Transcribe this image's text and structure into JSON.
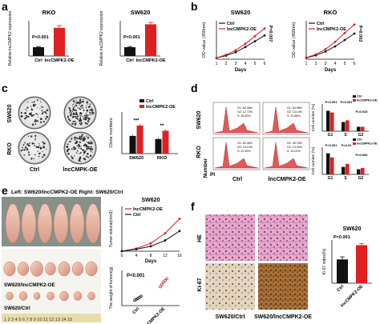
{
  "panels": {
    "a": {
      "label": "a",
      "charts": [
        {
          "title": "RKO",
          "ylabel": "Relative lncCMPK2\nexpression",
          "pvalue": "P<0.001",
          "categories": [
            "Ctrl",
            "lncCMPK2-OE"
          ],
          "values": [
            1.0,
            3.2
          ],
          "errors": [
            0.08,
            0.25
          ],
          "colors": [
            "#111111",
            "#e02020"
          ],
          "ylim": [
            0,
            4
          ]
        },
        {
          "title": "SW620",
          "ylabel": "Relative lncCMPK2\nexpression",
          "pvalue": "P<0.001",
          "categories": [
            "Ctrl",
            "lncCMPK2-OE"
          ],
          "values": [
            1.0,
            3.6
          ],
          "errors": [
            0.08,
            0.22
          ],
          "colors": [
            "#111111",
            "#e02020"
          ],
          "ylim": [
            0,
            4
          ]
        }
      ]
    },
    "b": {
      "label": "b",
      "charts": [
        {
          "title": "SW620",
          "ylabel": "OD value (450nm)",
          "xlabel": "Days",
          "pvalue": "P=0.007",
          "legend": [
            "Ctrl",
            "lncCMPK2-OE"
          ],
          "x": [
            1,
            2,
            3,
            4,
            5,
            6
          ],
          "series": [
            {
              "name": "Ctrl",
              "values": [
                0.1,
                0.28,
                0.55,
                0.95,
                1.4,
                1.85
              ],
              "color": "#111111"
            },
            {
              "name": "lncCMPK2-OE",
              "values": [
                0.1,
                0.35,
                0.7,
                1.2,
                1.8,
                2.4
              ],
              "color": "#e02020"
            }
          ],
          "ylim": [
            0,
            3
          ]
        },
        {
          "title": "RKO",
          "ylabel": "OD value (450nm)",
          "xlabel": "Days",
          "pvalue": "P=0.003",
          "legend": [
            "Ctrl",
            "lncCMPK2-OE"
          ],
          "x": [
            1,
            2,
            3,
            4,
            5,
            6
          ],
          "series": [
            {
              "name": "Ctrl",
              "values": [
                0.1,
                0.3,
                0.6,
                1.0,
                1.5,
                2.0
              ],
              "color": "#111111"
            },
            {
              "name": "lncCMPK2-OE",
              "values": [
                0.12,
                0.38,
                0.78,
                1.35,
                2.05,
                2.7
              ],
              "color": "#e02020"
            }
          ],
          "ylim": [
            0,
            3
          ]
        }
      ]
    },
    "c": {
      "label": "c",
      "row_labels": [
        "SW620",
        "RKO"
      ],
      "col_labels": [
        "Ctrl",
        "lncCMPK-OE"
      ],
      "chart": {
        "ylabel": "Clone numbers",
        "legend": [
          "Ctrl",
          "lncCMPK2-OE"
        ],
        "categories": [
          "SW620",
          "RKO"
        ],
        "series": [
          {
            "name": "Ctrl",
            "values": [
              85,
              70
            ],
            "errors": [
              6,
              6
            ],
            "color": "#111111"
          },
          {
            "name": "lncCMPK2-OE",
            "values": [
              135,
              110
            ],
            "errors": [
              8,
              8
            ],
            "color": "#e02020"
          }
        ],
        "significance": [
          "***",
          "**"
        ],
        "ylim": [
          0,
          200
        ]
      }
    },
    "d": {
      "label": "d",
      "row_labels": [
        "SW620",
        "RKO"
      ],
      "col_labels": [
        "Ctrl",
        "lncCMPK2-OE"
      ],
      "axis_labels": {
        "number": "Number",
        "pi": "PI"
      },
      "flow_stats": [
        [
          "G1: 60.38%",
          "G2: 12.72%",
          "S: 26.90%"
        ],
        [
          "G1: 54.98%",
          "G2: 13.14%",
          "S: 31.88%"
        ],
        [
          "G1: 62.45%",
          "G2: 15.10%",
          "S: 22.45%"
        ],
        [
          "G1: 49.78%",
          "G2: 19.20%",
          "S: 31.02%"
        ]
      ],
      "charts": [
        {
          "ylabel": "Cell number (%)",
          "legend": [
            "Ctrl",
            "lncCMPK2-OE"
          ],
          "categories": [
            "G1",
            "S",
            "G2"
          ],
          "pvalues": [
            "P<0.001",
            "P<0.001",
            "P=0.915"
          ],
          "series": [
            {
              "name": "Ctrl",
              "values": [
                60,
                27,
                13
              ],
              "color": "#111111"
            },
            {
              "name": "lncCMPK2-OE",
              "values": [
                55,
                32,
                13
              ],
              "color": "#e02020"
            }
          ],
          "ylim": [
            0,
            80
          ]
        },
        {
          "ylabel": "Cell number (%)",
          "legend": [
            "Ctrl",
            "lncCMPK2-OE"
          ],
          "categories": [
            "G1",
            "S",
            "G2"
          ],
          "pvalues": [
            "P<0.001",
            "P=0.01",
            "P=0.006"
          ],
          "series": [
            {
              "name": "Ctrl",
              "values": [
                62,
                22,
                15
              ],
              "color": "#111111"
            },
            {
              "name": "lncCMPK2-OE",
              "values": [
                50,
                31,
                19
              ],
              "color": "#e02020"
            }
          ],
          "ylim": [
            0,
            80
          ]
        }
      ]
    },
    "e": {
      "label": "e",
      "caption": "Left: SW620/lncCMPK2-OE  Right: SW620/Ctrl",
      "tumor_labels": [
        "SW620/lncCMPK2-OE",
        "SW620/Ctrl"
      ],
      "ruler_digits": "1 2 3 4 5 6 7 8 9 10 11 12 13 14 15",
      "volume_chart": {
        "title": "SW620",
        "ylabel": "Tumor volume(mm3)",
        "xlabel": "Days",
        "legend": [
          "lncCMPK2-OE",
          "Ctrl"
        ],
        "x": [
          0,
          4,
          8,
          12,
          16
        ],
        "series": [
          {
            "name": "lncCMPK2-OE",
            "values": [
              0,
              120,
              350,
              800,
              1450
            ],
            "color": "#e02020"
          },
          {
            "name": "Ctrl",
            "values": [
              0,
              90,
              220,
              480,
              900
            ],
            "color": "#111111"
          }
        ],
        "ylim": [
          0,
          2000
        ]
      },
      "weight_chart": {
        "ylabel": "The weight of tumors(g)",
        "pvalue": "P<0.001",
        "categories": [
          "Ctrl",
          "lncCMPK2-OE"
        ],
        "points": [
          [
            0.45,
            0.55,
            0.6,
            0.7,
            0.8
          ],
          [
            1.6,
            1.8,
            2.0,
            2.15,
            2.3
          ]
        ],
        "colors": [
          "#111111",
          "#e02020"
        ],
        "ylim": [
          0,
          3
        ]
      }
    },
    "f": {
      "label": "f",
      "row_labels": [
        "HE",
        "Ki-67"
      ],
      "col_labels": [
        "SW620/Ctrl",
        "SW620/lncCMPK2-OE"
      ],
      "chart": {
        "title": "SW620",
        "ylabel": "Ki-67 index(%)",
        "pvalue": "P<0.001",
        "categories": [
          "Ctrl",
          "lncCMPK2-OE"
        ],
        "values": [
          55,
          88
        ],
        "errors": [
          6,
          4
        ],
        "colors": [
          "#111111",
          "#e02020"
        ],
        "ylim": [
          0,
          100
        ]
      }
    }
  }
}
